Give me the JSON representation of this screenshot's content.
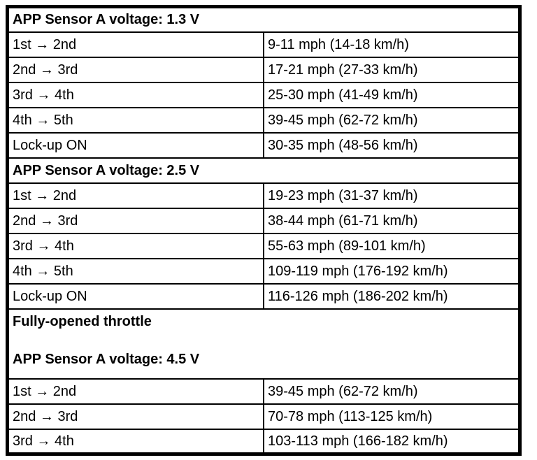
{
  "table": {
    "sections": [
      {
        "header": "APP Sensor A voltage: 1.3 V",
        "rows": [
          {
            "shift": "1st → 2nd",
            "speed": "9-11 mph (14-18 km/h)"
          },
          {
            "shift": "2nd → 3rd",
            "speed": "17-21 mph (27-33 km/h)"
          },
          {
            "shift": "3rd → 4th",
            "speed": "25-30 mph (41-49 km/h)"
          },
          {
            "shift": "4th → 5th",
            "speed": "39-45 mph (62-72 km/h)"
          },
          {
            "shift": "Lock-up ON",
            "speed": "30-35 mph (48-56 km/h)"
          }
        ]
      },
      {
        "header": "APP Sensor A voltage: 2.5 V",
        "rows": [
          {
            "shift": "1st → 2nd",
            "speed": "19-23 mph (31-37 km/h)"
          },
          {
            "shift": "2nd → 3rd",
            "speed": "38-44 mph (61-71 km/h)"
          },
          {
            "shift": "3rd → 4th",
            "speed": "55-63 mph (89-101 km/h)"
          },
          {
            "shift": "4th → 5th",
            "speed": "109-119 mph (176-192 km/h)"
          },
          {
            "shift": "Lock-up ON",
            "speed": "116-126 mph (186-202 km/h)"
          }
        ]
      },
      {
        "header_line1": "Fully-opened throttle",
        "header_line2": "APP Sensor A voltage: 4.5 V",
        "rows": [
          {
            "shift": "1st → 2nd",
            "speed": "39-45 mph (62-72 km/h)"
          },
          {
            "shift": "2nd → 3rd",
            "speed": "70-78 mph (113-125 km/h)"
          },
          {
            "shift": "3rd → 4th",
            "speed": "103-113 mph (166-182 km/h)"
          }
        ]
      }
    ]
  }
}
